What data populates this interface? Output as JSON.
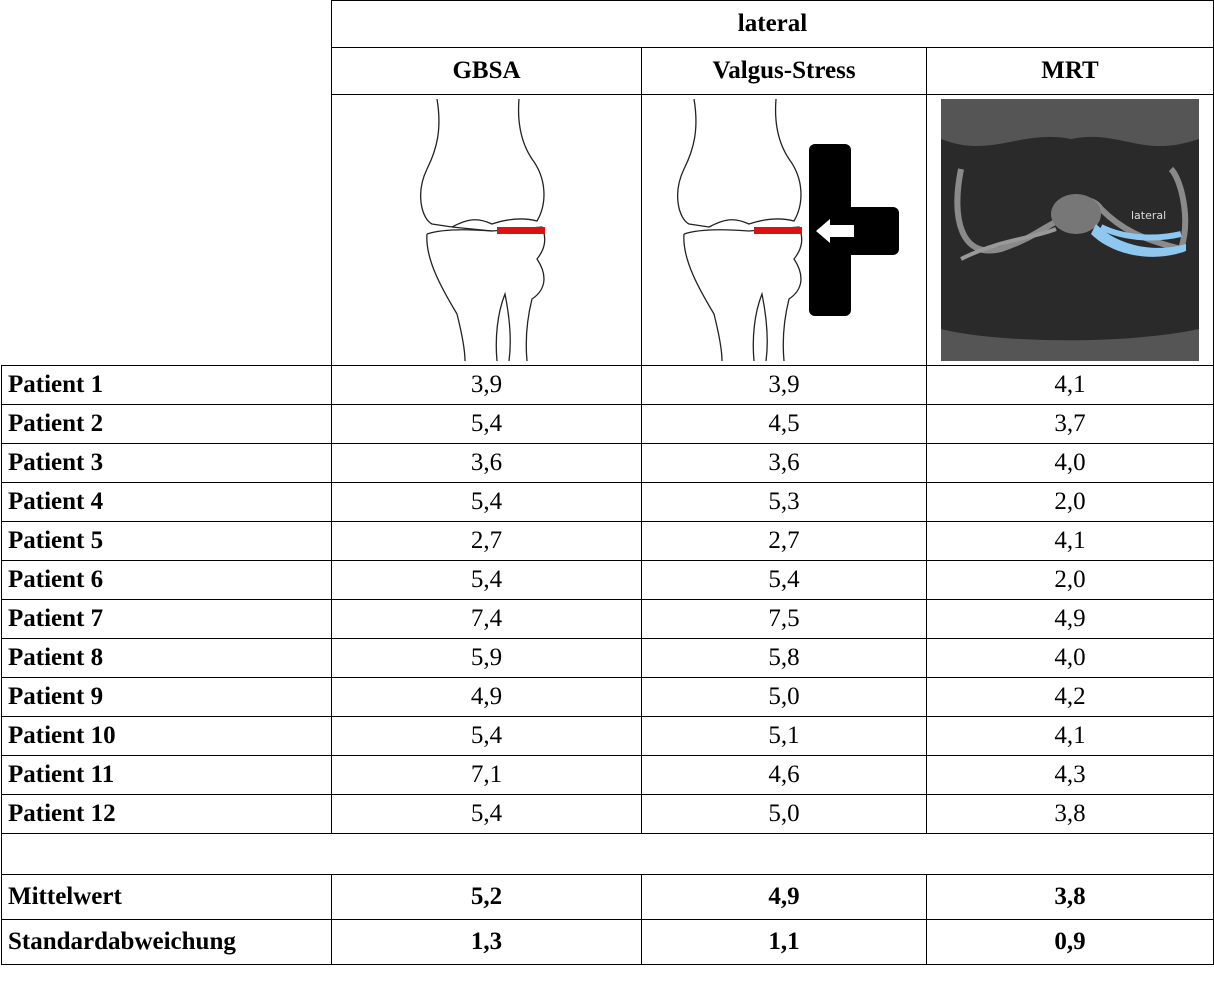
{
  "table": {
    "group_header": "lateral",
    "columns": [
      "GBSA",
      "Valgus-Stress",
      "MRT"
    ],
    "image_label": "lateral",
    "rows": [
      [
        "Patient 1",
        "3,9",
        "3,9",
        "4,1"
      ],
      [
        "Patient 2",
        "5,4",
        "4,5",
        "3,7"
      ],
      [
        "Patient 3",
        "3,6",
        "3,6",
        "4,0"
      ],
      [
        "Patient 4",
        "5,4",
        "5,3",
        "2,0"
      ],
      [
        "Patient 5",
        "2,7",
        "2,7",
        "4,1"
      ],
      [
        "Patient 6",
        "5,4",
        "5,4",
        "2,0"
      ],
      [
        "Patient 7",
        "7,4",
        "7,5",
        "4,9"
      ],
      [
        "Patient 8",
        "5,9",
        "5,8",
        "4,0"
      ],
      [
        "Patient 9",
        "4,9",
        "5,0",
        "4,2"
      ],
      [
        "Patient 10",
        "5,4",
        "5,1",
        "4,1"
      ],
      [
        "Patient 11",
        "7,1",
        "4,6",
        "4,3"
      ],
      [
        "Patient 12",
        "5,4",
        "5,0",
        "3,8"
      ]
    ],
    "summary": [
      [
        "Mittelwert",
        "5,2",
        "4,9",
        "3,8"
      ],
      [
        "Standardabweichung",
        "1,3",
        "1,1",
        "0,9"
      ]
    ]
  }
}
